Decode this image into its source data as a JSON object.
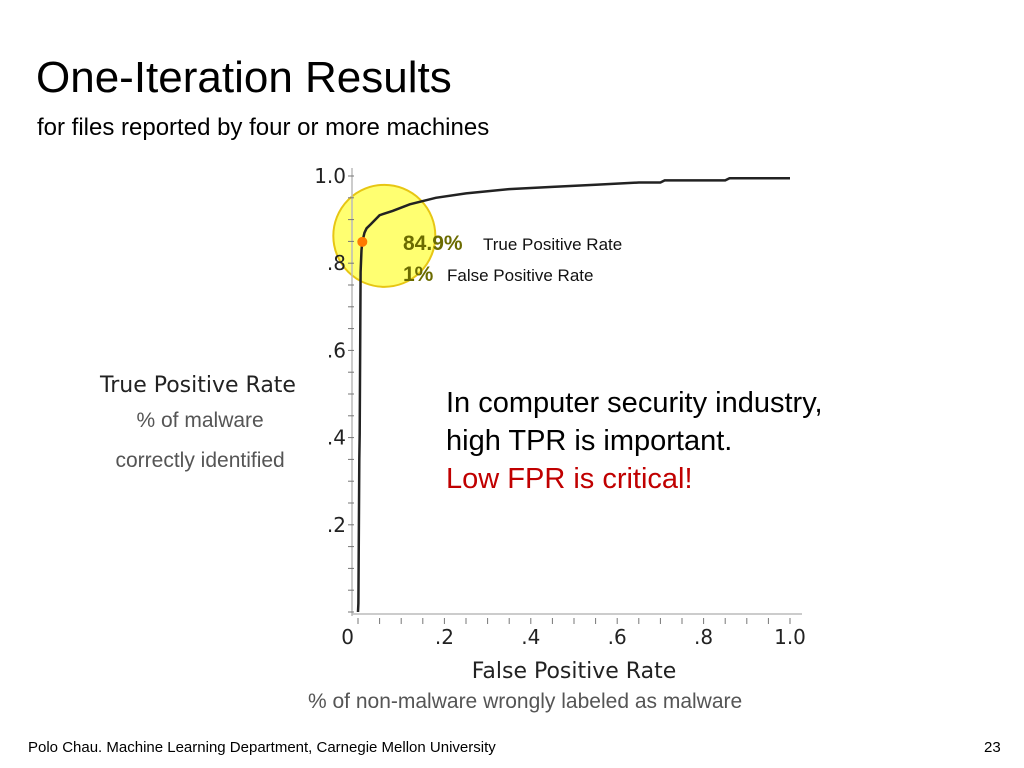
{
  "slide": {
    "title": "One-Iteration Results",
    "subtitle": "for files reported by four or more machines",
    "footer": "Polo Chau. Machine Learning Department, Carnegie Mellon University",
    "page_number": "23"
  },
  "annotations": {
    "tpr_desc_line1": "% of malware",
    "tpr_desc_line2": "correctly identified",
    "fpr_desc": "% of non-malware wrongly labeled as malware",
    "note_line1": "In computer security industry,",
    "note_line2": "high TPR is important.",
    "note_line3": "Low FPR is critical!"
  },
  "colors": {
    "highlight": "#ffff66",
    "highlight_stroke": "#e6c200",
    "marker": "#ff7a00",
    "critical": "#c00000",
    "curve": "#222222"
  },
  "chart_data": {
    "type": "line",
    "xlabel": "False Positive Rate",
    "ylabel": "True Positive Rate",
    "xlim": [
      0,
      1.0
    ],
    "ylim": [
      0,
      1.0
    ],
    "x_ticks": [
      {
        "value": 0,
        "label": "0"
      },
      {
        "value": 0.2,
        "label": ".2"
      },
      {
        "value": 0.4,
        "label": ".4"
      },
      {
        "value": 0.6,
        "label": ".6"
      },
      {
        "value": 0.8,
        "label": ".8"
      },
      {
        "value": 1.0,
        "label": "1.0"
      }
    ],
    "y_ticks": [
      {
        "value": 0.2,
        "label": ".2"
      },
      {
        "value": 0.4,
        "label": ".4"
      },
      {
        "value": 0.6,
        "label": ".6"
      },
      {
        "value": 0.8,
        "label": ".8"
      },
      {
        "value": 1.0,
        "label": "1.0"
      }
    ],
    "series": [
      {
        "x": [
          0,
          0.001,
          0.003,
          0.004,
          0.006,
          0.008,
          0.01,
          0.015,
          0.02,
          0.03,
          0.05,
          0.08,
          0.12,
          0.18,
          0.25,
          0.35,
          0.45,
          0.55,
          0.65,
          0.7,
          0.71,
          0.85,
          0.86,
          1.0
        ],
        "y": [
          0,
          0.02,
          0.35,
          0.41,
          0.78,
          0.83,
          0.849,
          0.87,
          0.88,
          0.89,
          0.91,
          0.92,
          0.935,
          0.95,
          0.96,
          0.97,
          0.975,
          0.98,
          0.985,
          0.985,
          0.99,
          0.99,
          0.995,
          0.995
        ]
      }
    ],
    "highlight_point": {
      "x": 0.01,
      "y": 0.849,
      "tpr_value": "84.9%",
      "tpr_text": "True Positive Rate",
      "fpr_value": "1%",
      "fpr_text": "False Positive Rate"
    },
    "grid": false
  }
}
